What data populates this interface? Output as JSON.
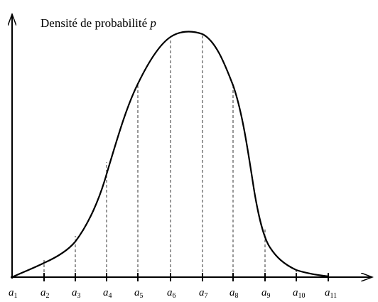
{
  "title": {
    "text": "Densité de probabilité",
    "variable": "p"
  },
  "ticks": [
    {
      "symbol": "a",
      "subscript": "1"
    },
    {
      "symbol": "a",
      "subscript": "2"
    },
    {
      "symbol": "a",
      "subscript": "3"
    },
    {
      "symbol": "a",
      "subscript": "4"
    },
    {
      "symbol": "a",
      "subscript": "5"
    },
    {
      "symbol": "a",
      "subscript": "6"
    },
    {
      "symbol": "a",
      "subscript": "7"
    },
    {
      "symbol": "a",
      "subscript": "8"
    },
    {
      "symbol": "a",
      "subscript": "9"
    },
    {
      "symbol": "a",
      "subscript": "10"
    },
    {
      "symbol": "a",
      "subscript": "11"
    }
  ]
}
